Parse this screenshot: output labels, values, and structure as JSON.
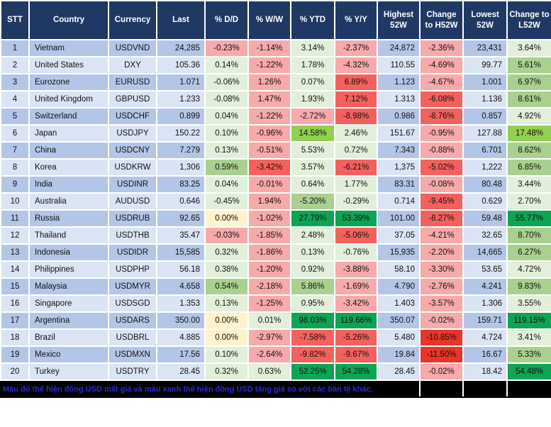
{
  "colors": {
    "header-navy": "#1F3864",
    "grid-white": "#FFFFFF",
    "row-blue-dark": "#B4C6E7",
    "row-blue-light": "#DAE4F4",
    "light-red": "#F8A9AB",
    "mid-red": "#F4615D",
    "strong-red": "#E83528",
    "light-green": "#E2EFDA",
    "mid-green": "#A9D08E",
    "bright-green": "#92D050",
    "strong-green": "#0DA554",
    "yellow": "#FFF2CC",
    "footer-blue": "#2B2BD5"
  },
  "footer": {
    "note": "Màu đỏ thể hiện đồng USD mất giá và màu xanh thể hiện đồng USD tăng giá so với các bản tệ khác."
  },
  "chart_data": {
    "type": "table",
    "columns": [
      {
        "key": "stt",
        "label": "STT"
      },
      {
        "key": "country",
        "label": "Country"
      },
      {
        "key": "currency",
        "label": "Currency"
      },
      {
        "key": "last",
        "label": "Last"
      },
      {
        "key": "dd",
        "label": "% D/D"
      },
      {
        "key": "ww",
        "label": "% W/W"
      },
      {
        "key": "ytd",
        "label": "% YTD"
      },
      {
        "key": "yy",
        "label": "% Y/Y"
      },
      {
        "key": "highest_52w",
        "label": "Highest 52W"
      },
      {
        "key": "chg_h52w",
        "label": "Change to H52W"
      },
      {
        "key": "lowest_52w",
        "label": "Lowest 52W"
      },
      {
        "key": "chg_l52w",
        "label": "Change to L52W"
      }
    ],
    "rows": [
      {
        "stt": "1",
        "country": "Vietnam",
        "currency": "USDVND",
        "last": "24,285",
        "dd": "-0.23%",
        "dd_color": "light-red",
        "ww": "-1.14%",
        "ww_color": "light-red",
        "ytd": "3.14%",
        "ytd_color": "light-green",
        "yy": "-2.37%",
        "yy_color": "light-red",
        "highest_52w": "24,872",
        "chg_h52w": "-2.36%",
        "chg_h52w_color": "light-red",
        "lowest_52w": "23,431",
        "chg_l52w": "3.64%",
        "chg_l52w_color": "light-green"
      },
      {
        "stt": "2",
        "country": "United States",
        "currency": "DXY",
        "last": "105.36",
        "dd": "0.14%",
        "dd_color": "light-green",
        "ww": "-1.22%",
        "ww_color": "light-red",
        "ytd": "1.78%",
        "ytd_color": "light-green",
        "yy": "-4.32%",
        "yy_color": "light-red",
        "highest_52w": "110.55",
        "chg_h52w": "-4.69%",
        "chg_h52w_color": "light-red",
        "lowest_52w": "99.77",
        "chg_l52w": "5.61%",
        "chg_l52w_color": "mid-green"
      },
      {
        "stt": "3",
        "country": "Eurozone",
        "currency": "EURUSD",
        "last": "1.071",
        "dd": "-0.06%",
        "dd_color": "light-green",
        "ww": "1.26%",
        "ww_color": "light-red",
        "ytd": "0.07%",
        "ytd_color": "light-green",
        "yy": "6.89%",
        "yy_color": "mid-red",
        "highest_52w": "1.123",
        "chg_h52w": "-4.67%",
        "chg_h52w_color": "light-red",
        "lowest_52w": "1.001",
        "chg_l52w": "6.97%",
        "chg_l52w_color": "mid-green"
      },
      {
        "stt": "4",
        "country": "United Kingdom",
        "currency": "GBPUSD",
        "last": "1.233",
        "dd": "-0.08%",
        "dd_color": "light-green",
        "ww": "1.47%",
        "ww_color": "light-red",
        "ytd": "1.93%",
        "ytd_color": "light-green",
        "yy": "7.12%",
        "yy_color": "mid-red",
        "highest_52w": "1.313",
        "chg_h52w": "-6.08%",
        "chg_h52w_color": "mid-red",
        "lowest_52w": "1.136",
        "chg_l52w": "8.61%",
        "chg_l52w_color": "mid-green"
      },
      {
        "stt": "5",
        "country": "Switzerland",
        "currency": "USDCHF",
        "last": "0.899",
        "dd": "0.04%",
        "dd_color": "light-green",
        "ww": "-1.22%",
        "ww_color": "light-red",
        "ytd": "-2.72%",
        "ytd_color": "light-red",
        "yy": "-8.98%",
        "yy_color": "mid-red",
        "highest_52w": "0.986",
        "chg_h52w": "-8.76%",
        "chg_h52w_color": "mid-red",
        "lowest_52w": "0.857",
        "chg_l52w": "4.92%",
        "chg_l52w_color": "light-green"
      },
      {
        "stt": "6",
        "country": "Japan",
        "currency": "USDJPY",
        "last": "150.22",
        "dd": "0.10%",
        "dd_color": "light-green",
        "ww": "-0.96%",
        "ww_color": "light-red",
        "ytd": "14.58%",
        "ytd_color": "bright-green",
        "yy": "2.46%",
        "yy_color": "light-green",
        "highest_52w": "151.67",
        "chg_h52w": "-0.95%",
        "chg_h52w_color": "light-red",
        "lowest_52w": "127.88",
        "chg_l52w": "17.48%",
        "chg_l52w_color": "bright-green"
      },
      {
        "stt": "7",
        "country": "China",
        "currency": "USDCNY",
        "last": "7.279",
        "dd": "0.13%",
        "dd_color": "light-green",
        "ww": "-0.51%",
        "ww_color": "light-red",
        "ytd": "5.53%",
        "ytd_color": "light-green",
        "yy": "0.72%",
        "yy_color": "light-green",
        "highest_52w": "7.343",
        "chg_h52w": "-0.88%",
        "chg_h52w_color": "light-red",
        "lowest_52w": "6.701",
        "chg_l52w": "8.62%",
        "chg_l52w_color": "mid-green"
      },
      {
        "stt": "8",
        "country": "Korea",
        "currency": "USDKRW",
        "last": "1,306",
        "dd": "0.59%",
        "dd_color": "mid-green",
        "ww": "-3.42%",
        "ww_color": "mid-red",
        "ytd": "3.57%",
        "ytd_color": "light-green",
        "yy": "-6.21%",
        "yy_color": "mid-red",
        "highest_52w": "1,375",
        "chg_h52w": "-5.02%",
        "chg_h52w_color": "mid-red",
        "lowest_52w": "1,222",
        "chg_l52w": "6.85%",
        "chg_l52w_color": "mid-green"
      },
      {
        "stt": "9",
        "country": "India",
        "currency": "USDINR",
        "last": "83.25",
        "dd": "0.04%",
        "dd_color": "light-green",
        "ww": "-0.01%",
        "ww_color": "light-red",
        "ytd": "0.64%",
        "ytd_color": "light-green",
        "yy": "1.77%",
        "yy_color": "light-green",
        "highest_52w": "83.31",
        "chg_h52w": "-0.08%",
        "chg_h52w_color": "light-red",
        "lowest_52w": "80.48",
        "chg_l52w": "3.44%",
        "chg_l52w_color": "light-green"
      },
      {
        "stt": "10",
        "country": "Australia",
        "currency": "AUDUSD",
        "last": "0.646",
        "dd": "-0.45%",
        "dd_color": "light-green",
        "ww": "1.94%",
        "ww_color": "light-red",
        "ytd": "-5.20%",
        "ytd_color": "mid-green",
        "yy": "-0.29%",
        "yy_color": "light-green",
        "highest_52w": "0.714",
        "chg_h52w": "-9.45%",
        "chg_h52w_color": "mid-red",
        "lowest_52w": "0.629",
        "chg_l52w": "2.70%",
        "chg_l52w_color": "light-green"
      },
      {
        "stt": "11",
        "country": "Russia",
        "currency": "USDRUB",
        "last": "92.65",
        "dd": "0.00%",
        "dd_color": "yellow",
        "ww": "-1.02%",
        "ww_color": "light-red",
        "ytd": "27.79%",
        "ytd_color": "strong-green",
        "yy": "53.39%",
        "yy_color": "strong-green",
        "highest_52w": "101.00",
        "chg_h52w": "-8.27%",
        "chg_h52w_color": "mid-red",
        "lowest_52w": "59.48",
        "chg_l52w": "55.77%",
        "chg_l52w_color": "strong-green"
      },
      {
        "stt": "12",
        "country": "Thailand",
        "currency": "USDTHB",
        "last": "35.47",
        "dd": "-0.03%",
        "dd_color": "light-red",
        "ww": "-1.85%",
        "ww_color": "light-red",
        "ytd": "2.48%",
        "ytd_color": "light-green",
        "yy": "-5.06%",
        "yy_color": "mid-red",
        "highest_52w": "37.05",
        "chg_h52w": "-4.21%",
        "chg_h52w_color": "light-red",
        "lowest_52w": "32.65",
        "chg_l52w": "8.70%",
        "chg_l52w_color": "mid-green"
      },
      {
        "stt": "13",
        "country": "Indonesia",
        "currency": "USDIDR",
        "last": "15,585",
        "dd": "0.32%",
        "dd_color": "light-green",
        "ww": "-1.86%",
        "ww_color": "light-red",
        "ytd": "0.13%",
        "ytd_color": "light-green",
        "yy": "-0.76%",
        "yy_color": "light-green",
        "highest_52w": "15,935",
        "chg_h52w": "-2.20%",
        "chg_h52w_color": "light-red",
        "lowest_52w": "14,665",
        "chg_l52w": "6.27%",
        "chg_l52w_color": "mid-green"
      },
      {
        "stt": "14",
        "country": "Philippines",
        "currency": "USDPHP",
        "last": "56.18",
        "dd": "0.38%",
        "dd_color": "light-green",
        "ww": "-1.20%",
        "ww_color": "light-red",
        "ytd": "0.92%",
        "ytd_color": "light-green",
        "yy": "-3.88%",
        "yy_color": "light-red",
        "highest_52w": "58.10",
        "chg_h52w": "-3.30%",
        "chg_h52w_color": "light-red",
        "lowest_52w": "53.65",
        "chg_l52w": "4.72%",
        "chg_l52w_color": "light-green"
      },
      {
        "stt": "15",
        "country": "Malaysia",
        "currency": "USDMYR",
        "last": "4.658",
        "dd": "0.54%",
        "dd_color": "mid-green",
        "ww": "-2.18%",
        "ww_color": "light-red",
        "ytd": "5.86%",
        "ytd_color": "mid-green",
        "yy": "-1.69%",
        "yy_color": "light-red",
        "highest_52w": "4.790",
        "chg_h52w": "-2.76%",
        "chg_h52w_color": "light-red",
        "lowest_52w": "4.241",
        "chg_l52w": "9.83%",
        "chg_l52w_color": "mid-green"
      },
      {
        "stt": "16",
        "country": "Singapore",
        "currency": "USDSGD",
        "last": "1.353",
        "dd": "0.13%",
        "dd_color": "light-green",
        "ww": "-1.25%",
        "ww_color": "light-red",
        "ytd": "0.95%",
        "ytd_color": "light-green",
        "yy": "-3.42%",
        "yy_color": "light-red",
        "highest_52w": "1.403",
        "chg_h52w": "-3.57%",
        "chg_h52w_color": "light-red",
        "lowest_52w": "1.306",
        "chg_l52w": "3.55%",
        "chg_l52w_color": "light-green"
      },
      {
        "stt": "17",
        "country": "Argentina",
        "currency": "USDARS",
        "last": "350.00",
        "dd": "0.00%",
        "dd_color": "yellow",
        "ww": "0.01%",
        "ww_color": "light-green",
        "ytd": "98.03%",
        "ytd_color": "strong-green",
        "yy": "119.66%",
        "yy_color": "strong-green",
        "highest_52w": "350.07",
        "chg_h52w": "-0.02%",
        "chg_h52w_color": "light-red",
        "lowest_52w": "159.71",
        "chg_l52w": "119.15%",
        "chg_l52w_color": "strong-green"
      },
      {
        "stt": "18",
        "country": "Brazil",
        "currency": "USDBRL",
        "last": "4.885",
        "dd": "0.00%",
        "dd_color": "yellow",
        "ww": "-2.97%",
        "ww_color": "light-red",
        "ytd": "-7.58%",
        "ytd_color": "mid-red",
        "yy": "-5.26%",
        "yy_color": "mid-red",
        "highest_52w": "5.480",
        "chg_h52w": "-10.85%",
        "chg_h52w_color": "strong-red",
        "lowest_52w": "4.724",
        "chg_l52w": "3.41%",
        "chg_l52w_color": "light-green"
      },
      {
        "stt": "19",
        "country": "Mexico",
        "currency": "USDMXN",
        "last": "17.56",
        "dd": "0.10%",
        "dd_color": "light-green",
        "ww": "-2.64%",
        "ww_color": "light-red",
        "ytd": "-9.82%",
        "ytd_color": "mid-red",
        "yy": "-9.67%",
        "yy_color": "mid-red",
        "highest_52w": "19.84",
        "chg_h52w": "-11.50%",
        "chg_h52w_color": "strong-red",
        "lowest_52w": "16.67",
        "chg_l52w": "5.33%",
        "chg_l52w_color": "mid-green"
      },
      {
        "stt": "20",
        "country": "Turkey",
        "currency": "USDTRY",
        "last": "28.45",
        "dd": "0.32%",
        "dd_color": "light-green",
        "ww": "0.63%",
        "ww_color": "light-green",
        "ytd": "52.25%",
        "ytd_color": "strong-green",
        "yy": "54.28%",
        "yy_color": "strong-green",
        "highest_52w": "28.45",
        "chg_h52w": "-0.02%",
        "chg_h52w_color": "light-red",
        "lowest_52w": "18.42",
        "chg_l52w": "54.48%",
        "chg_l52w_color": "strong-green"
      }
    ]
  }
}
